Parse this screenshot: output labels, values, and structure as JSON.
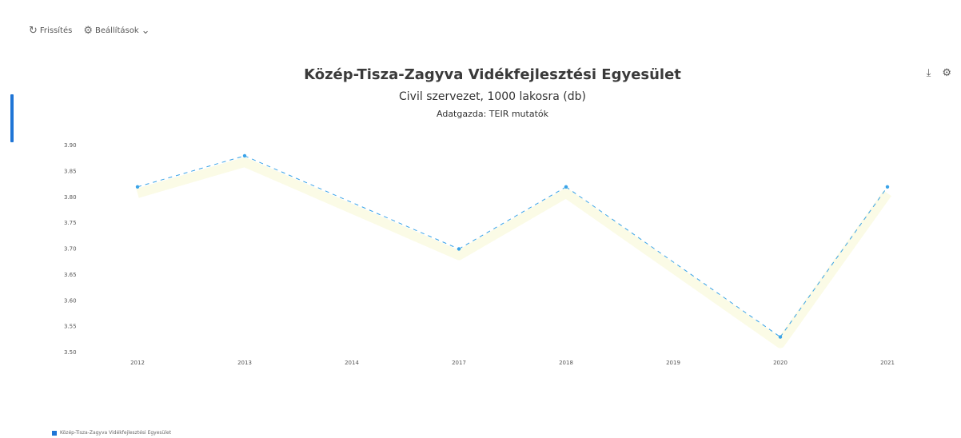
{
  "toolbar": {
    "refresh_label": "Frissítés",
    "settings_label": "Beállítások"
  },
  "chart_data": {
    "type": "line",
    "title": "Közép-Tisza-Zagyva Vidékfejlesztési Egyesület",
    "subtitle": "Civil szervezet, 1000 lakosra (db)",
    "source": "Adatgazda: TEIR mutatók",
    "categories": [
      "2012",
      "2013",
      "2014",
      "2017",
      "2018",
      "2019",
      "2020",
      "2021"
    ],
    "ylim": [
      3.5,
      3.9
    ],
    "yticks": [
      "3.90",
      "3.85",
      "3.80",
      "3.75",
      "3.70",
      "3.65",
      "3.60",
      "3.55",
      "3.50"
    ],
    "series": [
      {
        "name": "Közép-Tisza-Zagyva Vidékfejlesztési Egyesület",
        "values": [
          3.82,
          3.88,
          null,
          3.7,
          3.82,
          null,
          3.53,
          3.82
        ],
        "color": "#3aa3e8"
      }
    ],
    "ghost_series_color": "#fbfbe6",
    "grid": false,
    "legend_position": "bottom-left"
  }
}
